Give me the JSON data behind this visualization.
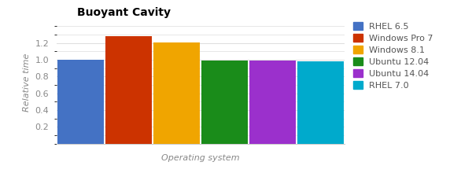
{
  "title": "Buoyant Cavity",
  "xlabel": "Operating system",
  "ylabel": "Relative time",
  "categories": [
    "RHEL 6.5",
    "Windows Pro 7",
    "Windows 8.1",
    "Ubuntu 12.04",
    "Ubuntu 14.04",
    "RHEL 7.0"
  ],
  "values": [
    1.0,
    1.28,
    1.21,
    0.99,
    0.99,
    0.985
  ],
  "bar_colors": [
    "#4472C4",
    "#CC3300",
    "#F0A500",
    "#1A8C1A",
    "#9B30CC",
    "#00AACC"
  ],
  "ylim": [
    0,
    1.45
  ],
  "yticks": [
    0.2,
    0.4,
    0.6,
    0.8,
    1.0,
    1.2
  ],
  "ytick_minor_count": 12,
  "background_color": "#FFFFFF",
  "grid_color": "#DDDDDD",
  "title_fontsize": 10,
  "label_fontsize": 8,
  "tick_fontsize": 8,
  "legend_fontsize": 8
}
